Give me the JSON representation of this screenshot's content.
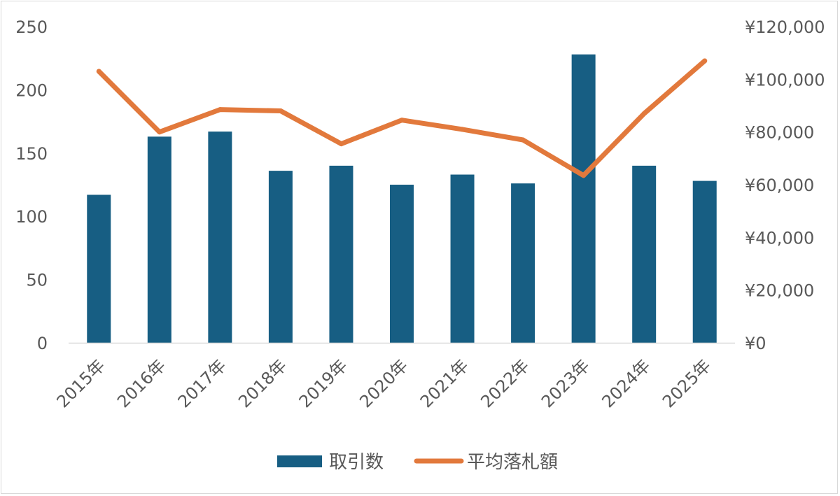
{
  "chart_data": {
    "type": "bar",
    "categories": [
      "2015年",
      "2016年",
      "2017年",
      "2018年",
      "2019年",
      "2020年",
      "2021年",
      "2022年",
      "2023年",
      "2024年",
      "2025年"
    ],
    "series": [
      {
        "name": "取引数",
        "type": "bar",
        "axis": "left",
        "color": "#175e83",
        "values": [
          117,
          163,
          167,
          136,
          140,
          125,
          133,
          126,
          228,
          140,
          128
        ]
      },
      {
        "name": "平均落札額",
        "type": "line",
        "axis": "right",
        "color": "#e2793c",
        "values": [
          103000,
          80000,
          88500,
          88000,
          75500,
          84500,
          81000,
          77000,
          63500,
          87000,
          107000
        ]
      }
    ],
    "left_axis": {
      "min": 0,
      "max": 250,
      "ticks": [
        0,
        50,
        100,
        150,
        200,
        250
      ],
      "tick_labels": [
        "0",
        "50",
        "100",
        "150",
        "200",
        "250"
      ]
    },
    "right_axis": {
      "min": 0,
      "max": 120000,
      "ticks": [
        0,
        20000,
        40000,
        60000,
        80000,
        100000,
        120000
      ],
      "tick_labels": [
        "¥0",
        "¥20,000",
        "¥40,000",
        "¥60,000",
        "¥80,000",
        "¥100,000",
        "¥120,000"
      ]
    },
    "title": "",
    "xlabel": "",
    "ylabel": "",
    "grid": false,
    "legend_position": "bottom"
  }
}
